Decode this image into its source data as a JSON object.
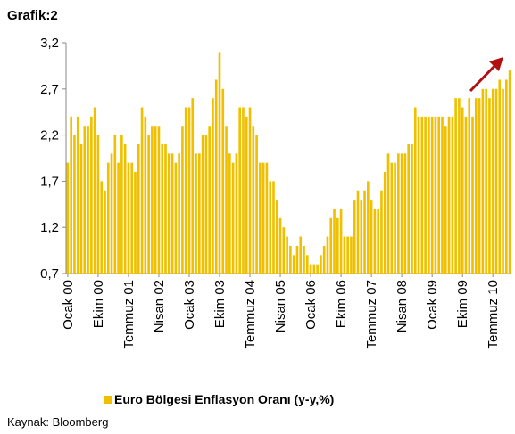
{
  "title": "Grafik:2",
  "source": "Kaynak: Bloomberg",
  "chart_data": {
    "type": "bar",
    "color": "#f0c000",
    "ylim": [
      0.7,
      3.2
    ],
    "yticks": [
      {
        "value": 0.7,
        "label": "0,7"
      },
      {
        "value": 1.2,
        "label": "1,2"
      },
      {
        "value": 1.7,
        "label": "1,7"
      },
      {
        "value": 2.2,
        "label": "2,2"
      },
      {
        "value": 2.7,
        "label": "2,7"
      },
      {
        "value": 3.2,
        "label": "3,2"
      }
    ],
    "legend": "bottom",
    "series": [
      {
        "name": "Euro Bölgesi Enflasyon Oranı (y-y,%)",
        "color": "#f0c000",
        "values": [
          1.9,
          2.4,
          2.2,
          2.4,
          2.1,
          2.3,
          2.3,
          2.4,
          2.5,
          2.2,
          1.7,
          1.6,
          1.9,
          2.0,
          2.2,
          1.9,
          2.2,
          2.1,
          1.9,
          1.9,
          1.8,
          2.1,
          2.5,
          2.4,
          2.2,
          2.3,
          2.3,
          2.3,
          2.1,
          2.1,
          2.0,
          2.0,
          1.9,
          2.0,
          2.3,
          2.5,
          2.5,
          2.6,
          2.0,
          2.0,
          2.2,
          2.2,
          2.3,
          2.6,
          2.8,
          3.1,
          2.7,
          2.3,
          2.0,
          1.9,
          2.0,
          2.5,
          2.5,
          2.4,
          2.5,
          2.3,
          2.2,
          1.9,
          1.9,
          1.9,
          1.7,
          1.7,
          1.5,
          1.3,
          1.2,
          1.1,
          1.0,
          0.9,
          1.0,
          1.1,
          1.0,
          0.9,
          0.8,
          0.8,
          0.8,
          0.9,
          1.0,
          1.1,
          1.3,
          1.4,
          1.3,
          1.4,
          1.1,
          1.1,
          1.1,
          1.5,
          1.6,
          1.5,
          1.6,
          1.7,
          1.5,
          1.4,
          1.4,
          1.6,
          1.8,
          2.0,
          1.9,
          1.9,
          2.0,
          2.0,
          2.0,
          2.1,
          2.1,
          2.5,
          2.4,
          2.4,
          2.4,
          2.4,
          2.4,
          2.4,
          2.4,
          2.4,
          2.3,
          2.4,
          2.4,
          2.6,
          2.6,
          2.5,
          2.4,
          2.6,
          2.4,
          2.6,
          2.6,
          2.7,
          2.7,
          2.6,
          2.7,
          2.7,
          2.8,
          2.7,
          2.8,
          2.9
        ]
      }
    ],
    "categories": [
      "Ocak 00",
      null,
      null,
      null,
      null,
      null,
      null,
      null,
      null,
      "Ekim 00",
      null,
      null,
      null,
      null,
      null,
      null,
      null,
      null,
      "Temmuz 01",
      null,
      null,
      null,
      null,
      null,
      null,
      null,
      null,
      "Nisan 02",
      null,
      null,
      null,
      null,
      null,
      null,
      null,
      null,
      "Ocak 03",
      null,
      null,
      null,
      null,
      null,
      null,
      null,
      null,
      "Ekim 03",
      null,
      null,
      null,
      null,
      null,
      null,
      null,
      null,
      "Temmuz 04",
      null,
      null,
      null,
      null,
      null,
      null,
      null,
      null,
      "Nisan 05",
      null,
      null,
      null,
      null,
      null,
      null,
      null,
      null,
      "Ocak 06",
      null,
      null,
      null,
      null,
      null,
      null,
      null,
      null,
      "Ekim 06",
      null,
      null,
      null,
      null,
      null,
      null,
      null,
      null,
      "Temmuz 07",
      null,
      null,
      null,
      null,
      null,
      null,
      null,
      null,
      "Nisan 08",
      null,
      null,
      null,
      null,
      null,
      null,
      null,
      null,
      "Ocak 09",
      null,
      null,
      null,
      null,
      null,
      null,
      null,
      null,
      "Ekim 09",
      null,
      null,
      null,
      null,
      null,
      null,
      null,
      null,
      "Temmuz 10",
      null,
      null,
      null,
      null,
      null
    ]
  }
}
